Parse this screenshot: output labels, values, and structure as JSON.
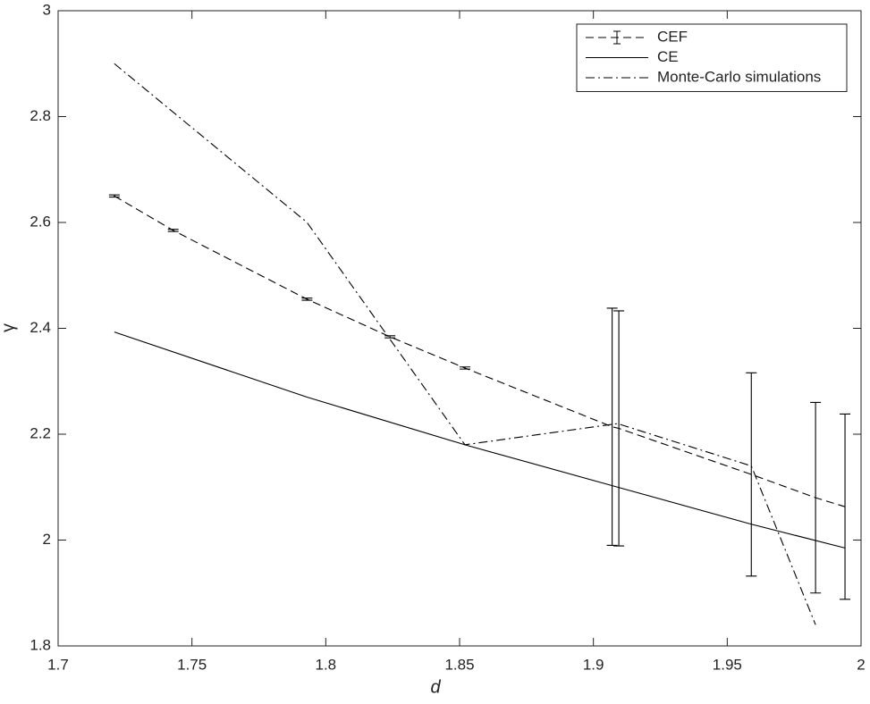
{
  "chart_data": {
    "type": "line",
    "xlabel": "d",
    "ylabel": "γ",
    "xlim": [
      1.7,
      2
    ],
    "ylim": [
      1.8,
      3
    ],
    "xticks": [
      1.7,
      1.75,
      1.8,
      1.85,
      1.9,
      1.95,
      2
    ],
    "yticks": [
      1.8,
      2,
      2.2,
      2.4,
      2.6,
      2.8,
      3
    ],
    "legend": "top-right",
    "series": [
      {
        "name": "CEF",
        "color": "#000000",
        "line_style": "dashed",
        "x": [
          1.721,
          1.743,
          1.793,
          1.824,
          1.852,
          1.907,
          1.9095,
          1.959,
          1.983,
          1.994
        ],
        "values": [
          2.65,
          2.585,
          2.455,
          2.384,
          2.325,
          2.214,
          2.211,
          2.124,
          2.08,
          2.063
        ],
        "errors": [
          0.002,
          0.002,
          0.002,
          0.002,
          0.002,
          0.224,
          0.222,
          0.192,
          0.18,
          0.175
        ]
      },
      {
        "name": "CE",
        "color": "#000000",
        "line_style": "solid",
        "x": [
          1.721,
          1.793,
          1.852,
          1.909,
          1.959,
          1.994
        ],
        "values": [
          2.393,
          2.27,
          2.18,
          2.1,
          2.03,
          1.985
        ]
      },
      {
        "name": "Monte-Carlo simulations",
        "color": "#000000",
        "line_style": "dashdot",
        "x": [
          1.721,
          1.793,
          1.852,
          1.909,
          1.959,
          1.983
        ],
        "values": [
          2.9,
          2.6,
          2.18,
          2.22,
          2.14,
          1.84
        ]
      }
    ]
  }
}
